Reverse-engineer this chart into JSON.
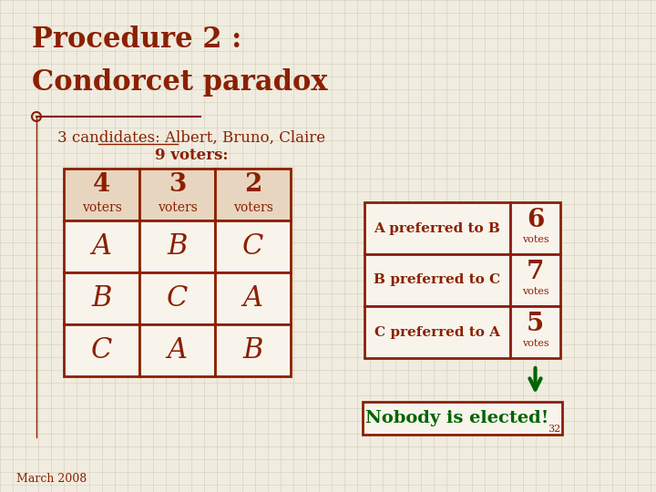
{
  "title_line1": "Procedure 2 :",
  "title_line2": "Condorcet paradox",
  "subtitle": "3 candidates: Albert, Bruno, Claire",
  "voters_label": "9 voters:",
  "voter_counts": [
    "4",
    "3",
    "2"
  ],
  "voter_word": "voters",
  "preference_table": [
    [
      "A",
      "B",
      "C"
    ],
    [
      "B",
      "C",
      "A"
    ],
    [
      "C",
      "A",
      "B"
    ]
  ],
  "comparison_labels": [
    "A preferred to B",
    "B preferred to C",
    "C preferred to A"
  ],
  "comparison_votes": [
    "6",
    "7",
    "5"
  ],
  "vote_word": "votes",
  "conclusion": "Nobody is elected!",
  "footer": "March 2008",
  "page_number": "32",
  "bg_color": "#f0ece0",
  "grid_color": "#c8bfa8",
  "title_color": "#8B2000",
  "table_border_color": "#8B2000",
  "header_fill_color": "#e8d5c0",
  "cell_fill_color": "#f8f4ec",
  "comparison_text_color": "#8B2000",
  "conclusion_color": "#006400",
  "arrow_color": "#006400",
  "conclusion_border_color": "#8B2000"
}
